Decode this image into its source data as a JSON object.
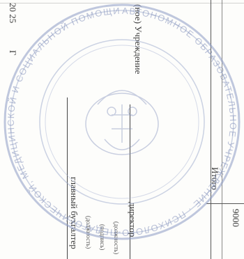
{
  "top_left_date": "20   25",
  "top_left_letter": "Г",
  "institution_label": "(ное) Учреждение",
  "total_label": "Итого",
  "total_value": "9000",
  "director_label": "директор",
  "director_caption": "(должность)",
  "accountant_label": "главный бухгалтер",
  "accountant_caption": "(должность)",
  "extra_caption": "(подпись)",
  "seal_text": "АВТОНОМНОЕ ОБРАЗОВАТЕЛЬНОЕ УЧРЕЖДЕНИЕ · ПСИХОЛОГО-ПЕДАГОГИЧЕСКОЙ, МЕДИЦИНСКОЙ И СОЦИАЛЬНОЙ ПОМОЩИ · ЦЕНТР"
}
